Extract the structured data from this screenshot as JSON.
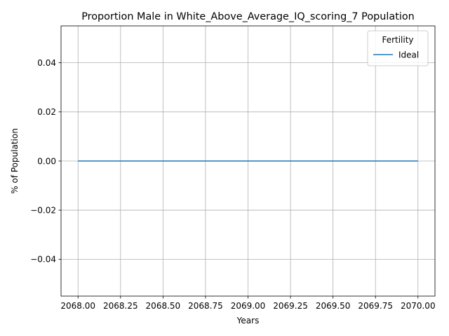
{
  "chart_data": {
    "type": "line",
    "title": "Proportion Male in White_Above_Average_IQ_scoring_7 Population",
    "xlabel": "Years",
    "ylabel": "% of Population",
    "xlim": [
      2067.9,
      2070.1
    ],
    "ylim": [
      -0.055,
      0.055
    ],
    "x_ticks": [
      2068.0,
      2068.25,
      2068.5,
      2068.75,
      2069.0,
      2069.25,
      2069.5,
      2069.75,
      2070.0
    ],
    "x_tick_labels": [
      "2068.00",
      "2068.25",
      "2068.50",
      "2068.75",
      "2069.00",
      "2069.25",
      "2069.50",
      "2069.75",
      "2070.00"
    ],
    "y_ticks": [
      -0.04,
      -0.02,
      0.0,
      0.02,
      0.04
    ],
    "y_tick_labels": [
      "−0.04",
      "−0.02",
      "0.00",
      "0.02",
      "0.04"
    ],
    "grid": true,
    "legend": {
      "title": "Fertility",
      "position": "top-right"
    },
    "series": [
      {
        "name": "Ideal",
        "color": "#1f77b4",
        "x": [
          2068,
          2069,
          2070
        ],
        "y": [
          0.0,
          0.0,
          0.0
        ]
      }
    ]
  }
}
